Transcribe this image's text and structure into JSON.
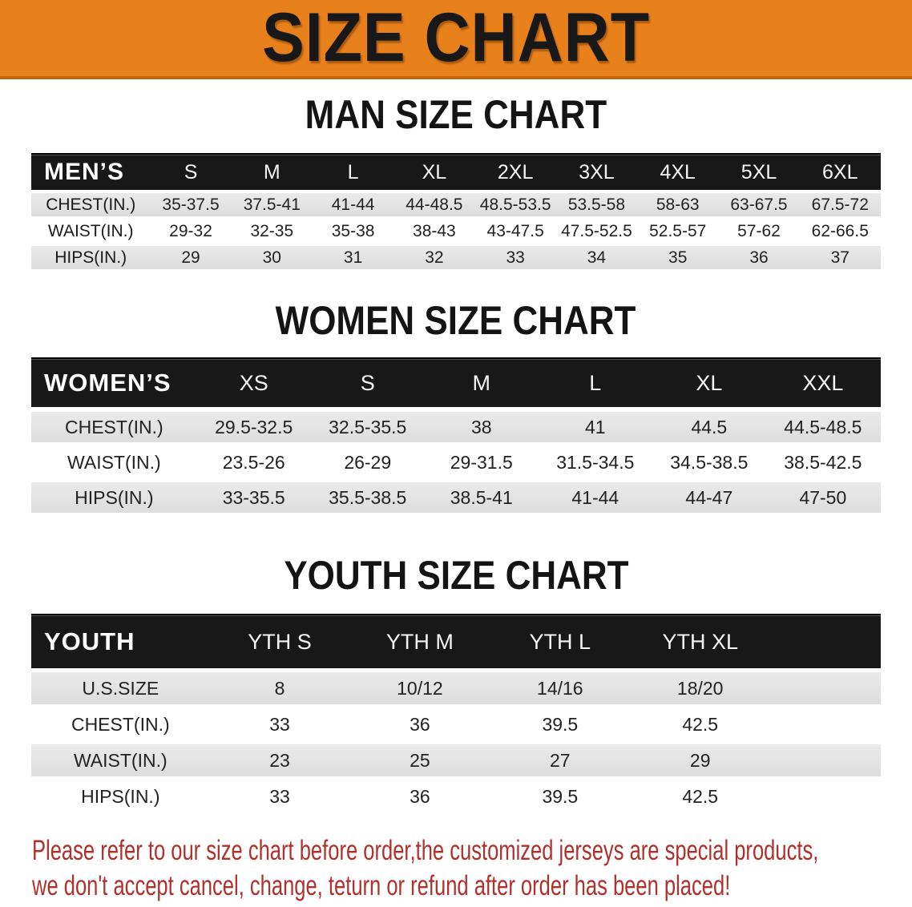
{
  "banner": {
    "title": "SIZE CHART"
  },
  "colors": {
    "banner_bg": "#E8811C",
    "banner_border": "#C4660A",
    "header_bar": "#181818",
    "row_shade": "#E2E2E2",
    "note_red": "#B0312C"
  },
  "men": {
    "heading": "MAN SIZE CHART",
    "table_label": "MEN’S",
    "columns": [
      "S",
      "M",
      "L",
      "XL",
      "2XL",
      "3XL",
      "4XL",
      "5XL",
      "6XL"
    ],
    "rows": [
      {
        "label": "CHEST(IN.)",
        "values": [
          "35-37.5",
          "37.5-41",
          "41-44",
          "44-48.5",
          "48.5-53.5",
          "53.5-58",
          "58-63",
          "63-67.5",
          "67.5-72"
        ]
      },
      {
        "label": "WAIST(IN.)",
        "values": [
          "29-32",
          "32-35",
          "35-38",
          "38-43",
          "43-47.5",
          "47.5-52.5",
          "52.5-57",
          "57-62",
          "62-66.5"
        ]
      },
      {
        "label": "HIPS(IN.)",
        "values": [
          "29",
          "30",
          "31",
          "32",
          "33",
          "34",
          "35",
          "36",
          "37"
        ]
      }
    ]
  },
  "women": {
    "heading": "WOMEN SIZE CHART",
    "table_label": "WOMEN’S",
    "columns": [
      "XS",
      "S",
      "M",
      "L",
      "XL",
      "XXL"
    ],
    "rows": [
      {
        "label": "CHEST(IN.)",
        "values": [
          "29.5-32.5",
          "32.5-35.5",
          "38",
          "41",
          "44.5",
          "44.5-48.5"
        ]
      },
      {
        "label": "WAIST(IN.)",
        "values": [
          "23.5-26",
          "26-29",
          "29-31.5",
          "31.5-34.5",
          "34.5-38.5",
          "38.5-42.5"
        ]
      },
      {
        "label": "HIPS(IN.)",
        "values": [
          "33-35.5",
          "35.5-38.5",
          "38.5-41",
          "41-44",
          "44-47",
          "47-50"
        ]
      }
    ]
  },
  "youth": {
    "heading": "YOUTH SIZE CHART",
    "table_label": "YOUTH",
    "columns": [
      "YTH S",
      "YTH M",
      "YTH L",
      "YTH XL"
    ],
    "rows": [
      {
        "label": "U.S.SIZE",
        "values": [
          "8",
          "10/12",
          "14/16",
          "18/20"
        ]
      },
      {
        "label": "CHEST(IN.)",
        "values": [
          "33",
          "36",
          "39.5",
          "42.5"
        ]
      },
      {
        "label": "WAIST(IN.)",
        "values": [
          "23",
          "25",
          "27",
          "29"
        ]
      },
      {
        "label": "HIPS(IN.)",
        "values": [
          "33",
          "36",
          "39.5",
          "42.5"
        ]
      }
    ]
  },
  "footer": {
    "line1": "Please refer to our size chart before order,the customized jerseys are special products,",
    "line2": "we don't accept cancel, change, teturn or refund after order has been placed!"
  }
}
